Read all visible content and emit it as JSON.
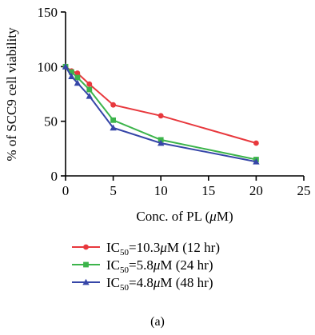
{
  "chart_data": {
    "type": "line",
    "xlabel_prefix": "Conc. of PL (",
    "xlabel_mu": "μ",
    "xlabel_suffix": "M)",
    "ylabel": "% of SCC9 cell viability",
    "xlim": [
      0,
      25
    ],
    "ylim": [
      0,
      150
    ],
    "xticks": [
      0,
      5,
      10,
      15,
      20,
      25
    ],
    "yticks": [
      0,
      50,
      100,
      150
    ],
    "x": [
      0,
      0.625,
      1.25,
      2.5,
      5,
      10,
      20
    ],
    "legend_position": "bottom",
    "series": [
      {
        "legend_ic": "IC",
        "legend_sub": "50",
        "legend_value": "=10.3",
        "legend_mu": "μ",
        "legend_rest": "M (12 hr)",
        "color": "#e8383d",
        "marker": "circle",
        "values": [
          100,
          96,
          94,
          84,
          65,
          55,
          30
        ]
      },
      {
        "legend_ic": "IC",
        "legend_sub": "50",
        "legend_value": "=5.8",
        "legend_mu": "μ",
        "legend_rest": "M (24 hr)",
        "color": "#3cb44b",
        "marker": "square",
        "values": [
          100,
          95,
          90,
          79,
          51,
          33,
          15
        ]
      },
      {
        "legend_ic": "IC",
        "legend_sub": "50",
        "legend_value": "=4.8",
        "legend_mu": "μ",
        "legend_rest": "M (48 hr)",
        "color": "#3646a8",
        "marker": "triangle",
        "values": [
          100,
          91,
          85,
          73,
          44,
          30,
          13
        ]
      }
    ]
  },
  "panel_label": "(a)"
}
